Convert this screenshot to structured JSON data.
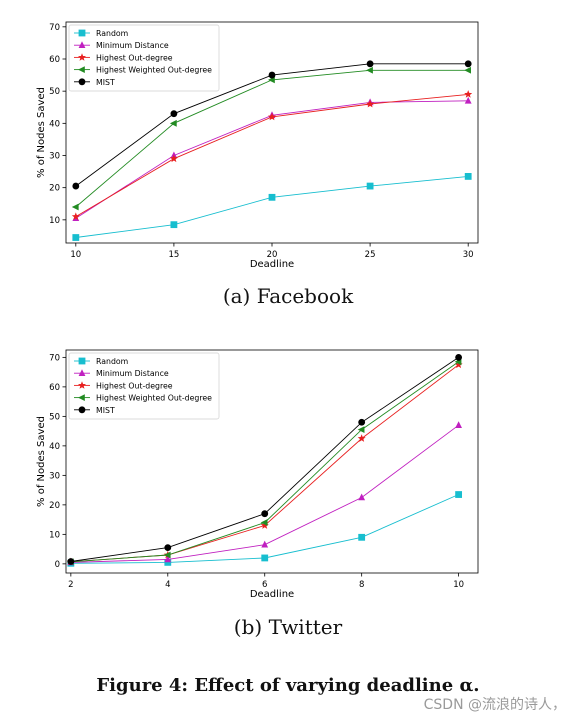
{
  "chart_data": [
    {
      "type": "line",
      "xlabel": "Deadline",
      "ylabel": "% of Nodes Saved",
      "x": [
        10,
        15,
        20,
        25,
        30
      ],
      "xticks": [
        10,
        15,
        20,
        25,
        30
      ],
      "yticks": [
        10,
        20,
        30,
        40,
        50,
        60,
        70
      ],
      "xlim": [
        9.5,
        30.5
      ],
      "ylim": [
        2.8,
        71.5
      ],
      "legend_position": "top-left",
      "series": [
        {
          "name": "Random",
          "color": "#17becf",
          "marker": "square",
          "values": [
            4.5,
            8.5,
            17,
            20.5,
            23.5
          ]
        },
        {
          "name": "Minimum Distance",
          "color": "#c020c0",
          "marker": "triangle",
          "values": [
            10.5,
            30,
            42.5,
            46.5,
            47
          ]
        },
        {
          "name": "Highest Out-degree",
          "color": "#e82020",
          "marker": "star",
          "values": [
            11,
            29,
            42,
            46,
            49
          ]
        },
        {
          "name": "Highest Weighted Out-degree",
          "color": "#228b22",
          "marker": "triangle-left",
          "values": [
            14,
            40,
            53.5,
            56.5,
            56.5
          ]
        },
        {
          "name": "MIST",
          "color": "#000000",
          "marker": "circle",
          "values": [
            20.5,
            43,
            55,
            58.5,
            58.5
          ]
        }
      ],
      "caption": "(a) Facebook"
    },
    {
      "type": "line",
      "xlabel": "Deadline",
      "ylabel": "% of Nodes Saved",
      "x": [
        2,
        4,
        6,
        8,
        10
      ],
      "xticks": [
        2,
        4,
        6,
        8,
        10
      ],
      "yticks": [
        0,
        10,
        20,
        30,
        40,
        50,
        60,
        70
      ],
      "xlim": [
        1.9,
        10.4
      ],
      "ylim": [
        -3.1,
        72.5
      ],
      "legend_position": "top-left",
      "series": [
        {
          "name": "Random",
          "color": "#17becf",
          "marker": "square",
          "values": [
            0.2,
            0.5,
            2,
            9,
            23.5
          ]
        },
        {
          "name": "Minimum Distance",
          "color": "#c020c0",
          "marker": "triangle",
          "values": [
            0.5,
            1.5,
            6.5,
            22.5,
            47
          ]
        },
        {
          "name": "Highest Out-degree",
          "color": "#e82020",
          "marker": "star",
          "values": [
            0.7,
            3,
            13,
            42.5,
            67.5
          ]
        },
        {
          "name": "Highest Weighted Out-degree",
          "color": "#228b22",
          "marker": "triangle-left",
          "values": [
            0.7,
            3,
            14,
            45.5,
            68.5
          ]
        },
        {
          "name": "MIST",
          "color": "#000000",
          "marker": "circle",
          "values": [
            0.8,
            5.5,
            17,
            48,
            70
          ]
        }
      ],
      "caption": "(b) Twitter"
    }
  ],
  "figure_caption": "Figure 4: Effect of varying deadline α.",
  "watermark": "CSDN @流浪的诗人，"
}
